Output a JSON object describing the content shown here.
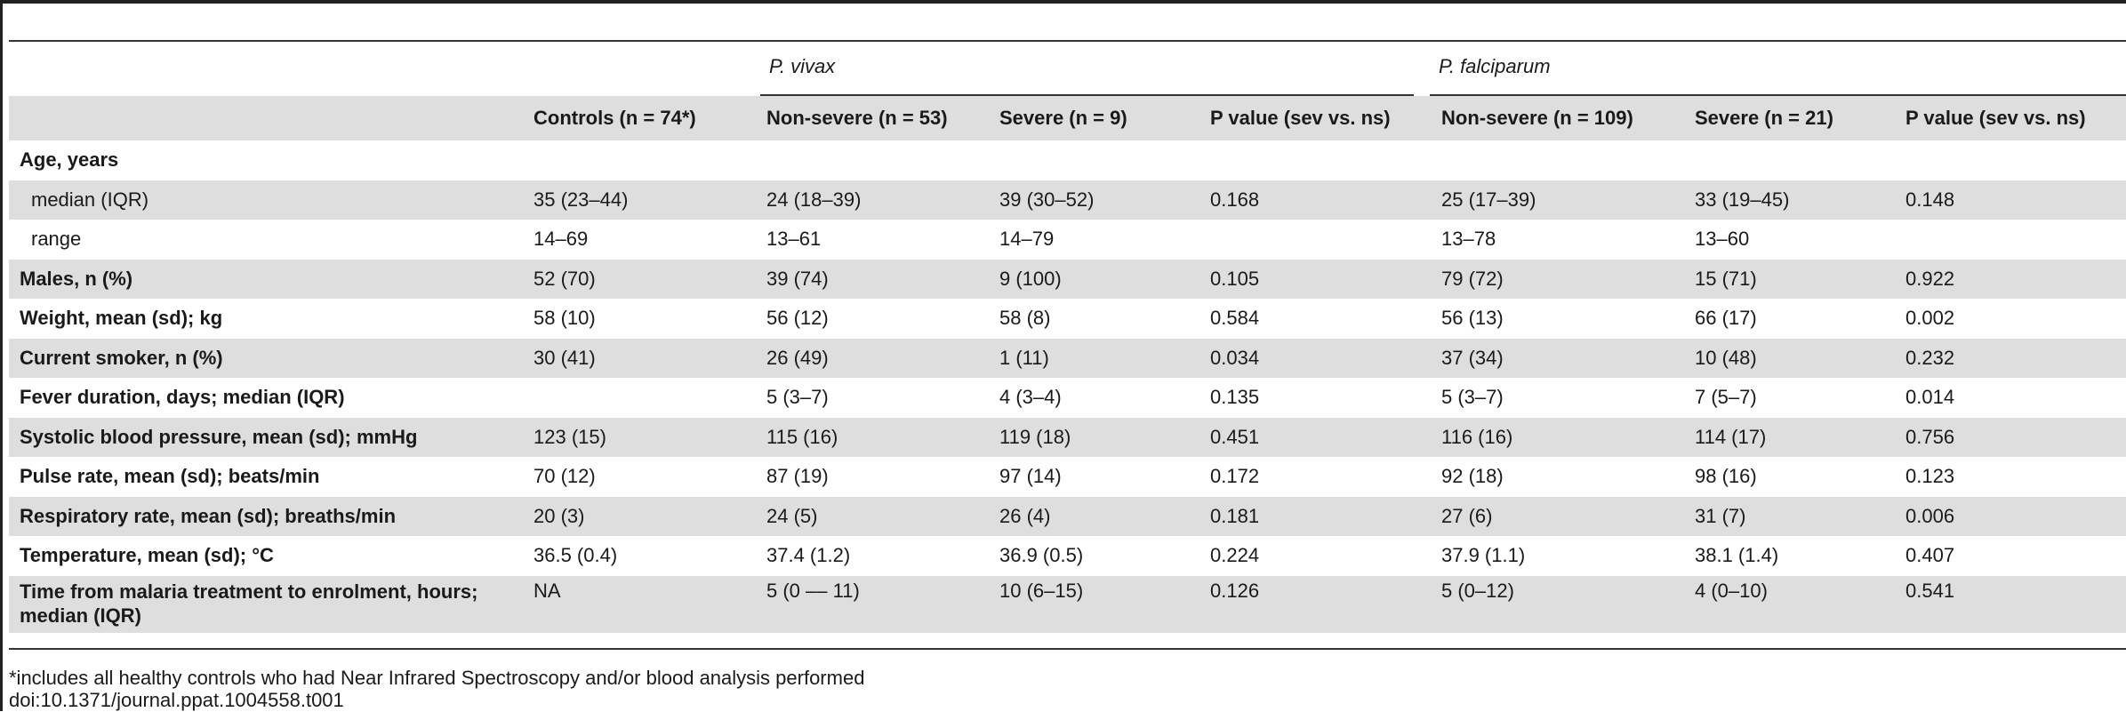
{
  "groups": {
    "vivax": "P. vivax",
    "falciparum": "P. falciparum"
  },
  "columns": [
    "",
    "Controls (n = 74*)",
    "Non-severe (n = 53)",
    "Severe (n = 9)",
    "P value (sev vs. ns)",
    "Non-severe (n = 109)",
    "Severe (n = 21)",
    "P value (sev vs. ns)"
  ],
  "rows": [
    [
      "Age, years",
      "",
      "",
      "",
      "",
      "",
      "",
      ""
    ],
    [
      "median (IQR)",
      "35 (23–44)",
      "24 (18–39)",
      "39 (30–52)",
      "0.168",
      "25 (17–39)",
      "33 (19–45)",
      "0.148"
    ],
    [
      "range",
      "14–69",
      "13–61",
      "14–79",
      "",
      "13–78",
      "13–60",
      ""
    ],
    [
      "Males, n (%)",
      "52 (70)",
      "39 (74)",
      "9 (100)",
      "0.105",
      "79 (72)",
      "15 (71)",
      "0.922"
    ],
    [
      "Weight, mean (sd); kg",
      "58 (10)",
      "56 (12)",
      "58 (8)",
      "0.584",
      "56 (13)",
      "66 (17)",
      "0.002"
    ],
    [
      "Current smoker, n (%)",
      "30 (41)",
      "26 (49)",
      "1 (11)",
      "0.034",
      "37 (34)",
      "10 (48)",
      "0.232"
    ],
    [
      "Fever duration, days; median (IQR)",
      "",
      "5 (3–7)",
      "4 (3–4)",
      "0.135",
      "5 (3–7)",
      "7 (5–7)",
      "0.014"
    ],
    [
      "Systolic blood pressure, mean (sd); mmHg",
      "123 (15)",
      "115 (16)",
      "119 (18)",
      "0.451",
      "116 (16)",
      "114 (17)",
      "0.756"
    ],
    [
      "Pulse rate, mean (sd); beats/min",
      "70 (12)",
      "87 (19)",
      "97 (14)",
      "0.172",
      "92 (18)",
      "98 (16)",
      "0.123"
    ],
    [
      "Respiratory rate, mean (sd); breaths/min",
      "20 (3)",
      "24 (5)",
      "26 (4)",
      "0.181",
      "27 (6)",
      "31 (7)",
      "0.006"
    ],
    [
      "Temperature, mean (sd); °C",
      "36.5 (0.4)",
      "37.4 (1.2)",
      "36.9 (0.5)",
      "0.224",
      "37.9 (1.1)",
      "38.1 (1.4)",
      "0.407"
    ],
    [
      "Time from malaria treatment to enrolment, hours; median (IQR)",
      "NA",
      "5 (0 –– 11)",
      "10 (6–15)",
      "0.126",
      "5 (0–12)",
      "4 (0–10)",
      "0.541"
    ]
  ],
  "footnotes": {
    "note": "*includes all healthy controls who had Near Infrared Spectroscopy and/or blood analysis performed",
    "doi": "doi:10.1371/journal.ppat.1004558.t001"
  }
}
